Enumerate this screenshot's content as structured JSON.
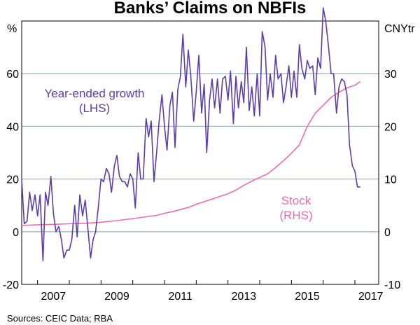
{
  "chart_data": {
    "type": "line",
    "title": "Banks’ Claims on NBFIs",
    "left_axis": {
      "unit": "%",
      "ylim": [
        -20,
        80
      ],
      "ticks": [
        -20,
        0,
        20,
        40,
        60
      ]
    },
    "right_axis": {
      "unit": "CNYtr",
      "ylim": [
        -10,
        40
      ],
      "ticks": [
        -10,
        0,
        10,
        20,
        30
      ]
    },
    "x_axis": {
      "range": [
        2006.5,
        2017.75
      ],
      "tick_labels": [
        "2007",
        "2009",
        "2011",
        "2013",
        "2015",
        "2017"
      ],
      "tick_years": [
        2007,
        2009,
        2011,
        2013,
        2015,
        2017
      ]
    },
    "grid": "horizontal",
    "source": "Sources: CEIC Data; RBA",
    "series": [
      {
        "name": "Year-ended growth",
        "axis_label": "(LHS)",
        "axis": "left",
        "color": "#5b3ea8",
        "x": [
          2006.5,
          2006.58,
          2006.67,
          2006.75,
          2006.83,
          2006.92,
          2007.0,
          2007.08,
          2007.17,
          2007.25,
          2007.33,
          2007.42,
          2007.5,
          2007.58,
          2007.67,
          2007.75,
          2007.83,
          2007.92,
          2008.0,
          2008.08,
          2008.17,
          2008.25,
          2008.33,
          2008.42,
          2008.5,
          2008.58,
          2008.67,
          2008.75,
          2008.83,
          2008.92,
          2009.0,
          2009.08,
          2009.17,
          2009.25,
          2009.33,
          2009.42,
          2009.5,
          2009.58,
          2009.67,
          2009.75,
          2009.83,
          2009.92,
          2010.0,
          2010.08,
          2010.17,
          2010.25,
          2010.33,
          2010.42,
          2010.5,
          2010.58,
          2010.67,
          2010.75,
          2010.83,
          2010.92,
          2011.0,
          2011.08,
          2011.17,
          2011.25,
          2011.33,
          2011.42,
          2011.5,
          2011.58,
          2011.67,
          2011.75,
          2011.83,
          2011.92,
          2012.0,
          2012.08,
          2012.17,
          2012.25,
          2012.33,
          2012.42,
          2012.5,
          2012.58,
          2012.67,
          2012.75,
          2012.83,
          2012.92,
          2013.0,
          2013.08,
          2013.17,
          2013.25,
          2013.33,
          2013.42,
          2013.5,
          2013.58,
          2013.67,
          2013.75,
          2013.83,
          2013.92,
          2014.0,
          2014.08,
          2014.17,
          2014.25,
          2014.33,
          2014.42,
          2014.5,
          2014.58,
          2014.67,
          2014.75,
          2014.83,
          2014.92,
          2015.0,
          2015.08,
          2015.17,
          2015.25,
          2015.33,
          2015.42,
          2015.5,
          2015.58,
          2015.67,
          2015.75,
          2015.83,
          2015.92,
          2016.0,
          2016.08,
          2016.17,
          2016.25,
          2016.33,
          2016.42,
          2016.5,
          2016.58,
          2016.67,
          2016.75,
          2016.83,
          2016.92,
          2017.0,
          2017.08,
          2017.17
        ],
        "values": [
          20,
          3,
          4,
          15,
          8,
          14,
          6,
          14,
          -11,
          15,
          10,
          21,
          7,
          0,
          2,
          -3,
          -10,
          -7,
          -7,
          -3,
          10,
          -2,
          14,
          6,
          12,
          2,
          -10,
          -3,
          0,
          10,
          20,
          19,
          24,
          22,
          15,
          25,
          29,
          21,
          19,
          19,
          17,
          22,
          20,
          9,
          30,
          20,
          20,
          43,
          36,
          42,
          19,
          30,
          42,
          52,
          40,
          31,
          48,
          53,
          32,
          54,
          59,
          75,
          55,
          69,
          59,
          42,
          53,
          67,
          45,
          56,
          30,
          50,
          58,
          47,
          58,
          45,
          58,
          59,
          50,
          61,
          41,
          59,
          47,
          57,
          49,
          70,
          46,
          55,
          44,
          60,
          44,
          76,
          70,
          50,
          60,
          51,
          67,
          58,
          60,
          49,
          55,
          63,
          51,
          61,
          51,
          71,
          62,
          58,
          65,
          62,
          63,
          52,
          66,
          62,
          85,
          80,
          70,
          60,
          60,
          45,
          55,
          58,
          57,
          52,
          33,
          25,
          23,
          17,
          17
        ]
      },
      {
        "name": "Stock",
        "axis_label": "(RHS)",
        "axis": "right",
        "color": "#f06aa9",
        "x": [
          2006.5,
          2007.0,
          2007.5,
          2008.0,
          2008.5,
          2009.0,
          2009.5,
          2010.0,
          2010.25,
          2010.5,
          2010.75,
          2011.0,
          2011.25,
          2011.5,
          2011.75,
          2012.0,
          2012.25,
          2012.5,
          2012.75,
          2013.0,
          2013.25,
          2013.5,
          2013.75,
          2014.0,
          2014.25,
          2014.5,
          2014.75,
          2015.0,
          2015.25,
          2015.5,
          2015.75,
          2016.0,
          2016.25,
          2016.5,
          2016.75,
          2017.0,
          2017.17
        ],
        "values": [
          1.2,
          1.3,
          1.4,
          1.5,
          1.6,
          1.8,
          2.1,
          2.5,
          2.7,
          2.9,
          3.1,
          3.5,
          3.8,
          4.2,
          4.6,
          5.2,
          5.7,
          6.2,
          6.7,
          7.2,
          7.9,
          8.8,
          9.6,
          10.3,
          11.0,
          12.2,
          13.5,
          14.9,
          16.5,
          20.0,
          22.5,
          24.0,
          25.5,
          26.5,
          27.3,
          27.8,
          28.5
        ]
      }
    ]
  }
}
